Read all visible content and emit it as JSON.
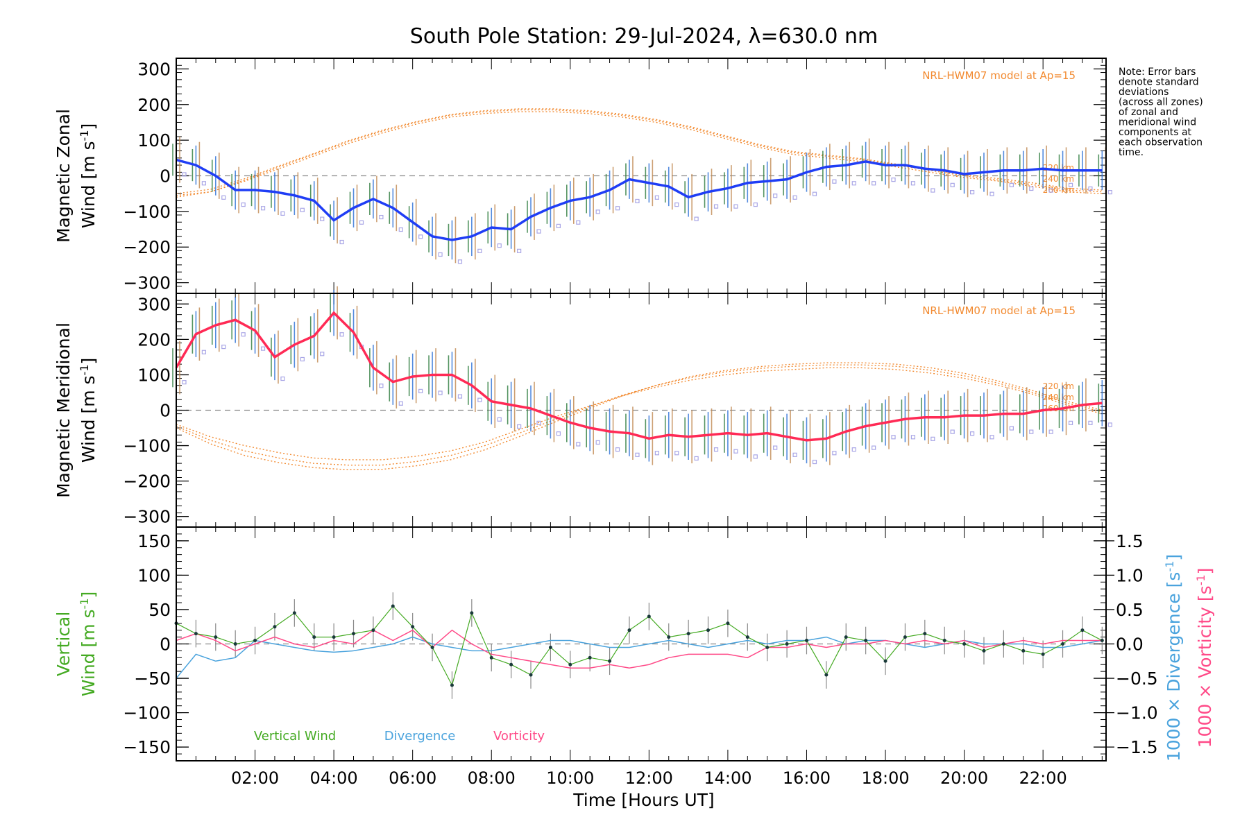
{
  "title": "South Pole Station: 29-Jul-2024, λ=630.0 nm",
  "note_lines": [
    "Note: Error bars",
    "denote standard",
    "deviations",
    "(across all zones)",
    "of zonal and",
    "meridional wind",
    "components at",
    "each observation",
    "time."
  ],
  "x_axis": {
    "label": "Time [Hours UT]",
    "range": [
      0,
      23.6
    ],
    "tick_labels": [
      "02:00",
      "04:00",
      "06:00",
      "08:00",
      "10:00",
      "12:00",
      "14:00",
      "16:00",
      "18:00",
      "20:00",
      "22:00"
    ],
    "tick_hours": [
      2,
      4,
      6,
      8,
      10,
      12,
      14,
      16,
      18,
      20,
      22
    ]
  },
  "colors": {
    "zonal": "#1f3df5",
    "zonal_light": "#4aa8e8",
    "meridional": "#ff2a55",
    "model": "#f28a30",
    "vertical": "#44aa22",
    "divergence": "#4aa3dd",
    "vorticity": "#ff4a88",
    "scatter": "#a9a6e6",
    "axis": "#000000"
  },
  "chart_data": [
    {
      "type": "line",
      "name": "zonal",
      "ylabel_line1": "Magnetic Zonal",
      "ylabel_line2": "Wind [m s",
      "ylabel_sup": "-1",
      "ylabel_end": "]",
      "ylim": [
        -330,
        330
      ],
      "yticks": [
        -300,
        -200,
        -100,
        0,
        100,
        200,
        300
      ],
      "ytick_labels": [
        "−300",
        "−200",
        "−100",
        "0",
        "100",
        "200",
        "300"
      ],
      "model_label": "NRL-HWM07 model at Ap=15",
      "altitude_labels": [
        "220 km",
        "240 km",
        "260 km"
      ],
      "x": [
        0,
        0.5,
        1,
        1.5,
        2,
        2.5,
        3,
        3.5,
        4,
        4.5,
        5,
        5.5,
        6,
        6.5,
        7,
        7.5,
        8,
        8.5,
        9,
        9.5,
        10,
        10.5,
        11,
        11.5,
        12,
        12.5,
        13,
        13.5,
        14,
        14.5,
        15,
        15.5,
        16,
        16.5,
        17,
        17.5,
        18,
        18.5,
        19,
        19.5,
        20,
        20.5,
        21,
        21.5,
        22,
        22.5,
        23,
        23.5
      ],
      "series": [
        {
          "name": "Observed zonal wind",
          "values": [
            45,
            30,
            0,
            -40,
            -40,
            -45,
            -55,
            -70,
            -125,
            -90,
            -65,
            -90,
            -130,
            -170,
            -180,
            -170,
            -145,
            -150,
            -115,
            -90,
            -70,
            -60,
            -40,
            -10,
            -20,
            -30,
            -60,
            -45,
            -35,
            -20,
            -15,
            -10,
            10,
            25,
            30,
            40,
            30,
            30,
            20,
            15,
            5,
            10,
            15,
            15,
            20,
            15,
            15,
            15
          ]
        }
      ],
      "model_curves": [
        {
          "name": "220 km",
          "values": [
            -55,
            -45,
            -15,
            20,
            55,
            90,
            120,
            145,
            165,
            175,
            180,
            180,
            175,
            165,
            150,
            130,
            105,
            80,
            60,
            50,
            40,
            25,
            10,
            -5,
            -15,
            -30,
            -45,
            -50
          ]
        },
        {
          "name": "240 km",
          "values": [
            -60,
            -45,
            -12,
            25,
            60,
            95,
            125,
            150,
            170,
            180,
            185,
            185,
            180,
            170,
            155,
            135,
            110,
            85,
            65,
            55,
            45,
            30,
            15,
            0,
            -12,
            -25,
            -40,
            -45
          ]
        },
        {
          "name": "260 km",
          "values": [
            -50,
            -38,
            -8,
            28,
            62,
            98,
            128,
            152,
            172,
            183,
            188,
            188,
            183,
            173,
            158,
            138,
            113,
            88,
            68,
            58,
            48,
            33,
            18,
            3,
            -8,
            -20,
            -35,
            -40
          ]
        }
      ],
      "model_x": [
        0,
        0.87,
        1.74,
        2.61,
        3.48,
        4.35,
        5.22,
        6.09,
        6.96,
        7.83,
        8.7,
        9.57,
        10.44,
        11.31,
        12.18,
        13.05,
        13.92,
        14.79,
        15.66,
        16.53,
        17.4,
        18.27,
        19.14,
        20.01,
        20.88,
        21.75,
        22.62,
        23.5
      ]
    },
    {
      "type": "line",
      "name": "meridional",
      "ylabel_line1": "Magnetic Meridional",
      "ylabel_line2": "Wind [m s",
      "ylabel_sup": "-1",
      "ylabel_end": "]",
      "ylim": [
        -330,
        330
      ],
      "yticks": [
        -300,
        -200,
        -100,
        0,
        100,
        200,
        300
      ],
      "ytick_labels": [
        "−300",
        "−200",
        "−100",
        "0",
        "100",
        "200",
        "300"
      ],
      "model_label": "NRL-HWM07 model at Ap=15",
      "altitude_labels": [
        "220 km",
        "240 km",
        "260 km"
      ],
      "x": [
        0,
        0.5,
        1,
        1.5,
        2,
        2.5,
        3,
        3.5,
        4,
        4.5,
        5,
        5.5,
        6,
        6.5,
        7,
        7.5,
        8,
        8.5,
        9,
        9.5,
        10,
        10.5,
        11,
        11.5,
        12,
        12.5,
        13,
        13.5,
        14,
        14.5,
        15,
        15.5,
        16,
        16.5,
        17,
        17.5,
        18,
        18.5,
        19,
        19.5,
        20,
        20.5,
        21,
        21.5,
        22,
        22.5,
        23,
        23.5
      ],
      "series": [
        {
          "name": "Observed meridional wind",
          "values": [
            120,
            215,
            240,
            255,
            225,
            150,
            185,
            210,
            275,
            220,
            120,
            80,
            95,
            100,
            100,
            70,
            25,
            15,
            5,
            -15,
            -35,
            -50,
            -60,
            -65,
            -80,
            -70,
            -75,
            -70,
            -65,
            -70,
            -65,
            -75,
            -85,
            -80,
            -60,
            -45,
            -35,
            -25,
            -20,
            -20,
            -15,
            -15,
            -10,
            -10,
            0,
            5,
            15,
            20
          ]
        }
      ],
      "model_curves": [
        {
          "name": "220 km",
          "values": [
            -40,
            -75,
            -100,
            -120,
            -135,
            -140,
            -140,
            -130,
            -115,
            -90,
            -55,
            -20,
            10,
            40,
            65,
            85,
            100,
            110,
            115,
            120,
            120,
            115,
            105,
            90,
            70,
            45,
            15,
            -10
          ]
        },
        {
          "name": "240 km",
          "values": [
            -45,
            -85,
            -115,
            -135,
            -150,
            -155,
            -155,
            -145,
            -128,
            -100,
            -65,
            -28,
            8,
            42,
            70,
            92,
            108,
            118,
            124,
            128,
            128,
            124,
            113,
            97,
            76,
            50,
            20,
            -5
          ]
        },
        {
          "name": "260 km",
          "values": [
            -50,
            -95,
            -128,
            -148,
            -162,
            -168,
            -167,
            -157,
            -140,
            -112,
            -75,
            -35,
            3,
            40,
            70,
            95,
            112,
            123,
            130,
            134,
            134,
            130,
            120,
            104,
            82,
            55,
            25,
            0
          ]
        }
      ],
      "model_x": [
        0,
        0.87,
        1.74,
        2.61,
        3.48,
        4.35,
        5.22,
        6.09,
        6.96,
        7.83,
        8.7,
        9.57,
        10.44,
        11.31,
        12.18,
        13.05,
        13.92,
        14.79,
        15.66,
        16.53,
        17.4,
        18.27,
        19.14,
        20.01,
        20.88,
        21.75,
        22.62,
        23.5
      ]
    },
    {
      "type": "line",
      "name": "vertical",
      "ylabel_line1": "Vertical",
      "ylabel_line2": "Wind [m s",
      "ylabel_sup": "-1",
      "ylabel_end": "]",
      "ylim": [
        -170,
        170
      ],
      "yticks": [
        -150,
        -100,
        -50,
        0,
        50,
        100,
        150
      ],
      "ytick_labels": [
        "−150",
        "−100",
        "−50",
        "0",
        "50",
        "100",
        "150"
      ],
      "y2lim": [
        -1.7,
        1.7
      ],
      "y2ticks": [
        -1.5,
        -1.0,
        -0.5,
        0.0,
        0.5,
        1.0,
        1.5
      ],
      "y2tick_labels": [
        "−1.5",
        "−1.0",
        "−0.5",
        "0.0",
        "0.5",
        "1.0",
        "1.5"
      ],
      "y2label_div": "1000 × Divergence [s",
      "y2label_vort": "1000 × Vorticity [s",
      "y2label_sup": "-1",
      "y2label_end": "]",
      "legend": [
        "Vertical Wind",
        "Divergence",
        "Vorticity"
      ],
      "x": [
        0,
        0.5,
        1,
        1.5,
        2,
        2.5,
        3,
        3.5,
        4,
        4.5,
        5,
        5.5,
        6,
        6.5,
        7,
        7.5,
        8,
        8.5,
        9,
        9.5,
        10,
        10.5,
        11,
        11.5,
        12,
        12.5,
        13,
        13.5,
        14,
        14.5,
        15,
        15.5,
        16,
        16.5,
        17,
        17.5,
        18,
        18.5,
        19,
        19.5,
        20,
        20.5,
        21,
        21.5,
        22,
        22.5,
        23,
        23.5
      ],
      "series": [
        {
          "name": "Vertical Wind",
          "values": [
            30,
            15,
            10,
            0,
            5,
            25,
            45,
            10,
            10,
            15,
            20,
            55,
            25,
            -5,
            -60,
            45,
            -20,
            -30,
            -45,
            -5,
            -30,
            -20,
            -25,
            20,
            40,
            10,
            15,
            20,
            30,
            10,
            -5,
            0,
            5,
            -45,
            10,
            5,
            -25,
            10,
            15,
            5,
            0,
            -10,
            0,
            -10,
            -15,
            0,
            20,
            5
          ]
        },
        {
          "name": "Divergence",
          "values": [
            -0.5,
            -0.15,
            -0.25,
            -0.2,
            0.05,
            0.0,
            -0.05,
            -0.1,
            -0.12,
            -0.1,
            -0.05,
            0.0,
            0.1,
            0.0,
            -0.05,
            -0.1,
            -0.1,
            -0.05,
            0.0,
            0.05,
            0.05,
            0.0,
            -0.05,
            -0.05,
            0.0,
            0.05,
            0.0,
            -0.05,
            0.0,
            0.05,
            0.0,
            0.05,
            0.05,
            0.1,
            0.0,
            0.05,
            0.05,
            0.0,
            -0.05,
            0.0,
            0.05,
            0.0,
            0.0,
            0.0,
            -0.05,
            -0.05,
            0.0,
            0.05
          ]
        },
        {
          "name": "Vorticity",
          "values": [
            0.05,
            0.15,
            0.05,
            -0.1,
            0.0,
            0.1,
            0.0,
            -0.05,
            0.05,
            0.0,
            0.2,
            0.05,
            0.2,
            -0.05,
            0.2,
            0.0,
            -0.15,
            -0.2,
            -0.25,
            -0.3,
            -0.35,
            -0.35,
            -0.3,
            -0.35,
            -0.3,
            -0.2,
            -0.15,
            -0.15,
            -0.15,
            -0.2,
            -0.05,
            -0.05,
            0.0,
            -0.05,
            0.0,
            0.0,
            0.05,
            0.0,
            0.05,
            0.0,
            0.05,
            -0.05,
            0.0,
            0.05,
            0.0,
            0.05,
            0.05,
            0.05
          ]
        }
      ]
    }
  ]
}
